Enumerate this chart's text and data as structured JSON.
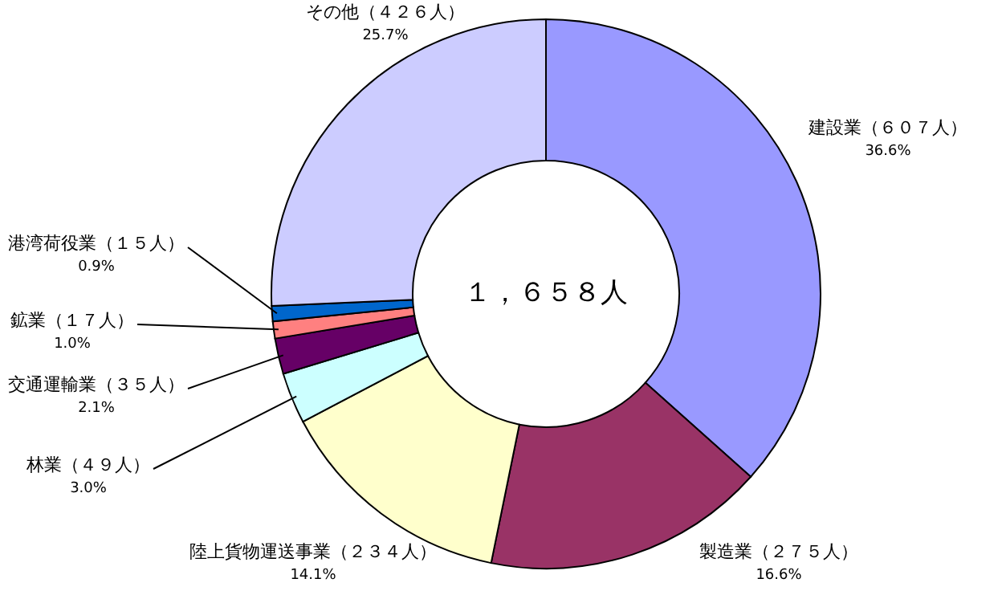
{
  "chart_data": {
    "type": "donut",
    "title": "１，６５８人",
    "categories": [
      "建設業（６０７人）",
      "製造業（２７５人）",
      "陸上貨物運送事業（２３４人）",
      "林業（４９人）",
      "交通運輸業（３５人）",
      "鉱業（１７人）",
      "港湾荷役業（１５人）",
      "その他（４２６人）"
    ],
    "values": [
      36.6,
      16.6,
      14.1,
      3.0,
      2.1,
      1.0,
      0.9,
      25.7
    ],
    "value_labels": [
      "36.6%",
      "16.6%",
      "14.1%",
      "3.0%",
      "2.1%",
      "1.0%",
      "0.9%",
      "25.7%"
    ],
    "colors": [
      "#9999ff",
      "#993366",
      "#ffffcc",
      "#ccffff",
      "#660066",
      "#ff8080",
      "#0066cc",
      "#ccccff"
    ]
  }
}
